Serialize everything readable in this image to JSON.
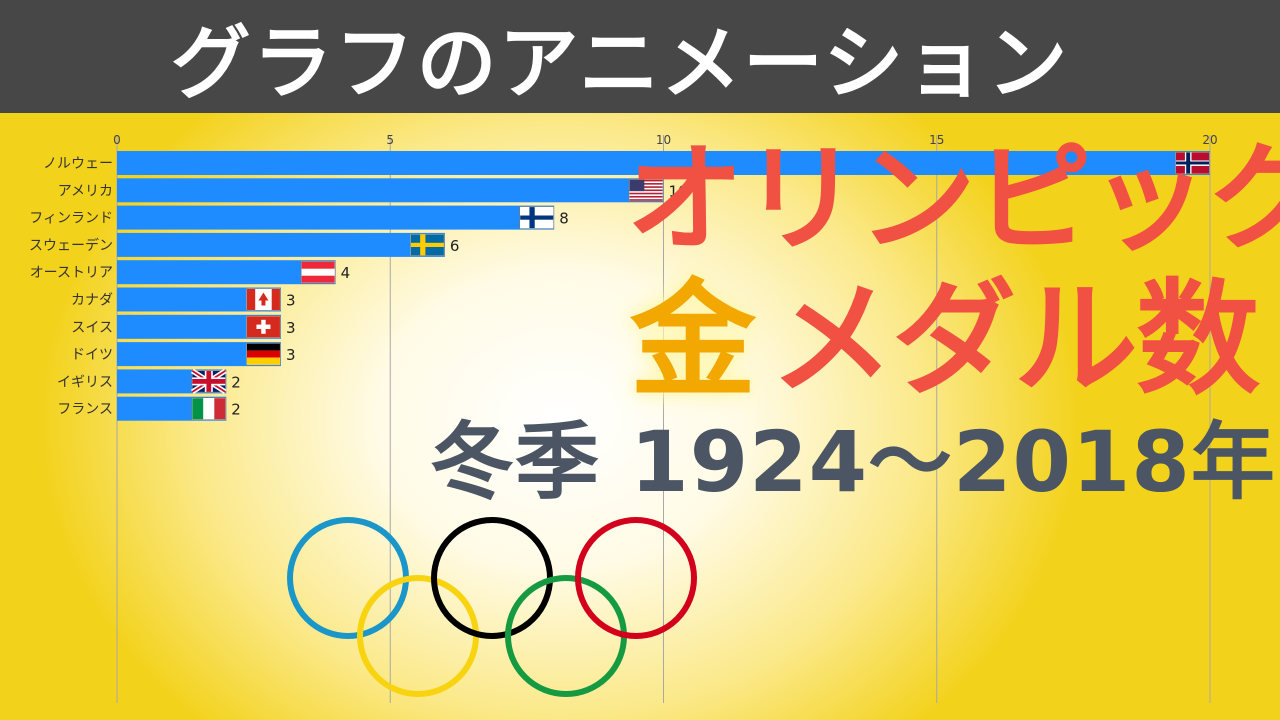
{
  "header": {
    "title": "グラフのアニメーション"
  },
  "headline": {
    "line1": "オリンピック",
    "line2_gold": "金",
    "line2_rest": "メダル数",
    "subtitle": "冬季 1924～2018年"
  },
  "colors": {
    "bar": "#1e8cff",
    "header_bg": "#474747",
    "headline_red": "#f05142",
    "headline_gold": "#f2a800",
    "subtitle": "#4b5563"
  },
  "rings": [
    {
      "name": "blue-ring",
      "color": "#1a96c8"
    },
    {
      "name": "yellow-ring",
      "color": "#f8d30f"
    },
    {
      "name": "black-ring",
      "color": "#000000"
    },
    {
      "name": "green-ring",
      "color": "#159a41"
    },
    {
      "name": "red-ring",
      "color": "#d2001c"
    }
  ],
  "chart_data": {
    "type": "bar",
    "orientation": "horizontal",
    "categories": [
      "ノルウェー",
      "アメリカ",
      "フィンランド",
      "スウェーデン",
      "オーストリア",
      "カナダ",
      "スイス",
      "ドイツ",
      "イギリス",
      "フランス"
    ],
    "values": [
      20,
      10,
      8,
      6,
      4,
      3,
      3,
      3,
      2,
      2
    ],
    "data_labels": [
      "",
      "10",
      "8",
      "6",
      "4",
      "3",
      "3",
      "3",
      "2",
      "2"
    ],
    "flags": [
      "norway-flag",
      "usa-flag",
      "finland-flag",
      "sweden-flag",
      "austria-flag",
      "canada-flag",
      "switzerland-flag",
      "germany-flag",
      "uk-flag",
      "france-flag"
    ],
    "xlim": [
      0,
      20
    ],
    "xticks": [
      0,
      5,
      10,
      15,
      20
    ],
    "xtick_labels": [
      "0",
      "5",
      "10",
      "15",
      "20"
    ],
    "grid": true,
    "axis_position": "top"
  }
}
